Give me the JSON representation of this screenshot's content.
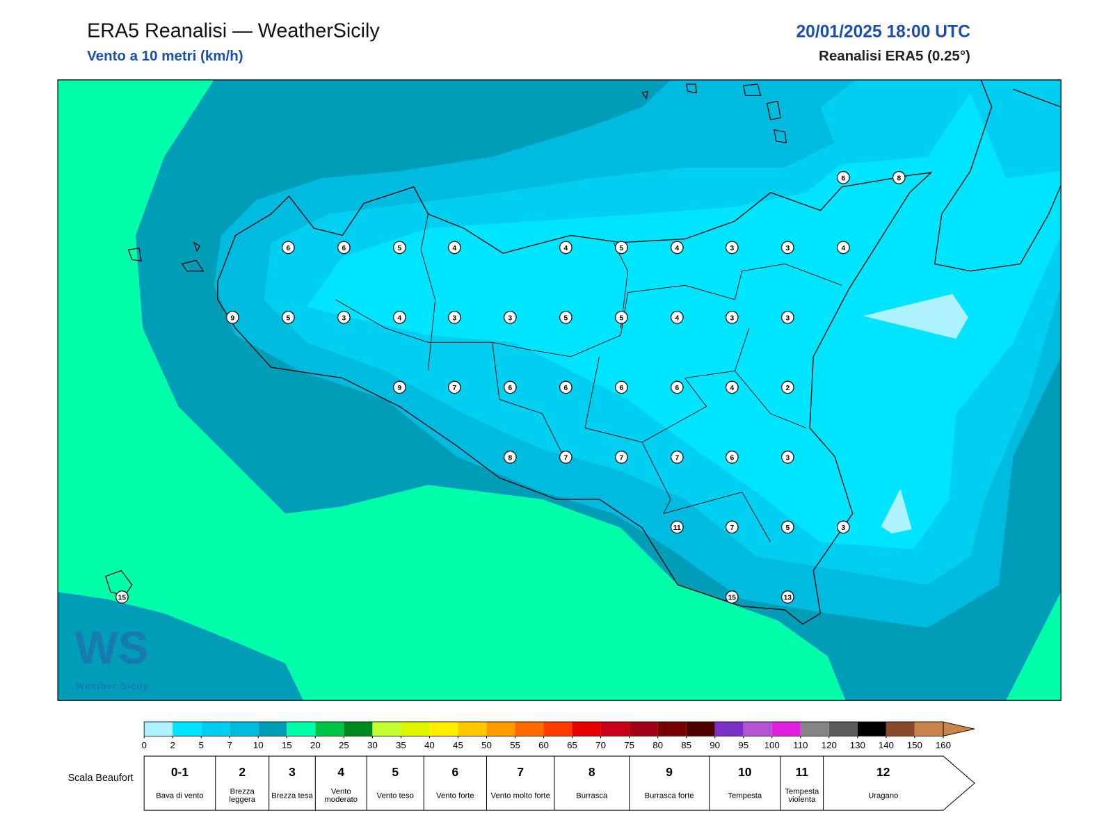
{
  "header": {
    "title": "ERA5 Reanalisi — WeatherSicily",
    "subtitle": "Vento a 10 metri (km/h)",
    "datetime": "20/01/2025 18:00 UTC",
    "source": "Reanalisi ERA5 (0.25°)"
  },
  "stations": [
    6,
    8,
    6,
    6,
    5,
    4,
    4,
    5,
    4,
    3,
    3,
    4,
    9,
    5,
    3,
    4,
    3,
    3,
    5,
    5,
    4,
    3,
    3,
    9,
    7,
    6,
    6,
    6,
    6,
    4,
    2,
    8,
    7,
    7,
    7,
    6,
    3,
    11,
    7,
    5,
    3,
    15,
    15,
    13
  ],
  "logo": {
    "text": "Weather Sicily"
  },
  "colorbar": {
    "ticks": [
      0,
      2,
      5,
      7,
      10,
      15,
      20,
      25,
      30,
      35,
      40,
      45,
      50,
      55,
      60,
      65,
      70,
      75,
      80,
      85,
      90,
      95,
      100,
      110,
      120,
      130,
      140,
      150,
      160
    ],
    "colors": [
      "#aef2ff",
      "#00e5ff",
      "#00cff2",
      "#00bbe0",
      "#009db8",
      "#00ffaa",
      "#00c544",
      "#008a1e",
      "#c2ff30",
      "#e2f500",
      "#ffee00",
      "#ffc800",
      "#ff9a00",
      "#ff6a00",
      "#ff3a00",
      "#e80000",
      "#cc0018",
      "#a20014",
      "#780000",
      "#4e0000",
      "#7a2fc8",
      "#b653d4",
      "#e01ee0",
      "#848484",
      "#5a5a5a",
      "#000000",
      "#884a2a",
      "#c8844a"
    ]
  },
  "beaufort": {
    "label": "Scala Beaufort",
    "levels": [
      {
        "force": "0-1",
        "name": "Bava di vento"
      },
      {
        "force": 2,
        "name": "Brezza leggera"
      },
      {
        "force": 3,
        "name": "Brezza tesa"
      },
      {
        "force": 4,
        "name": "Vento moderato"
      },
      {
        "force": 5,
        "name": "Vento teso"
      },
      {
        "force": 6,
        "name": "Vento forte"
      },
      {
        "force": 7,
        "name": "Vento molto forte"
      },
      {
        "force": 8,
        "name": "Burrasca"
      },
      {
        "force": 9,
        "name": "Burrasca forte"
      },
      {
        "force": 10,
        "name": "Tempesta"
      },
      {
        "force": 11,
        "name": "Tempesta violenta"
      },
      {
        "force": 12,
        "name": "Uragano"
      }
    ]
  }
}
